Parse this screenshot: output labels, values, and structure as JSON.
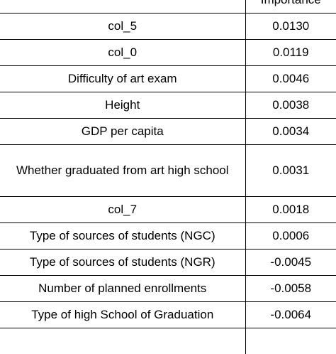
{
  "table": {
    "header": [
      "",
      "Importance"
    ],
    "rows": [
      {
        "feature": "col_5",
        "importance": "0.0130"
      },
      {
        "feature": "col_0",
        "importance": "0.0119"
      },
      {
        "feature": "Difficulty of art exam",
        "importance": "0.0046"
      },
      {
        "feature": "Height",
        "importance": "0.0038"
      },
      {
        "feature": "GDP per capita",
        "importance": "0.0034"
      },
      {
        "feature": "Whether graduated from art high school",
        "importance": "0.0031"
      },
      {
        "feature": "col_7",
        "importance": "0.0018"
      },
      {
        "feature": "Type of sources of students (NGC)",
        "importance": "0.0006"
      },
      {
        "feature": "Type of sources of students (NGR)",
        "importance": "-0.0045"
      },
      {
        "feature": "Number of planned enrollments",
        "importance": "-0.0058"
      },
      {
        "feature": "Type of high School of Graduation",
        "importance": "-0.0064"
      }
    ]
  }
}
